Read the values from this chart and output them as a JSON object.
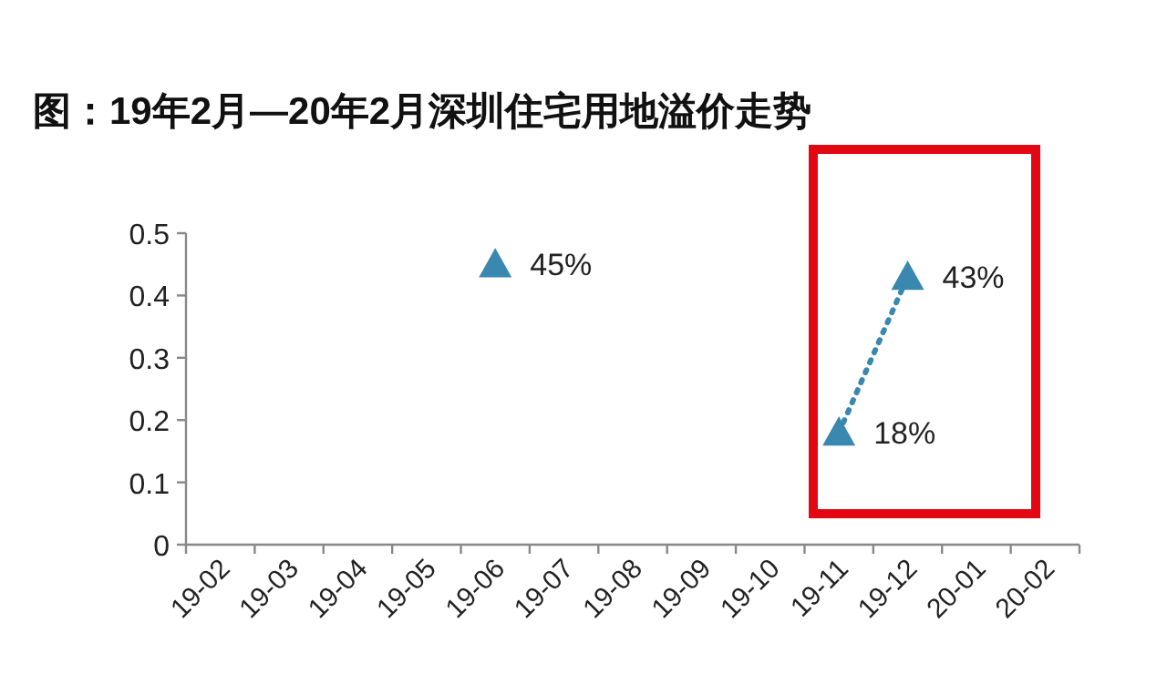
{
  "chart_data": {
    "type": "line",
    "title": "图：19年2月—20年2月深圳住宅用地溢价走势",
    "categories": [
      "19-02",
      "19-03",
      "19-04",
      "19-05",
      "19-06",
      "19-07",
      "19-08",
      "19-09",
      "19-10",
      "19-11",
      "19-12",
      "20-01",
      "20-02"
    ],
    "series": [
      {
        "color": "#3a87b0",
        "values": [
          null,
          null,
          null,
          null,
          0.45,
          null,
          null,
          null,
          null,
          0.18,
          0.43,
          null,
          null
        ],
        "value_labels": [
          null,
          null,
          null,
          null,
          "45%",
          null,
          null,
          null,
          null,
          "18%",
          "43%",
          null,
          null
        ]
      }
    ],
    "ylim": [
      0,
      0.5
    ],
    "yticks": [
      0,
      0.1,
      0.2,
      0.3,
      0.4,
      0.5
    ],
    "grid": false,
    "marker": "triangle",
    "line_style": "dotted"
  }
}
